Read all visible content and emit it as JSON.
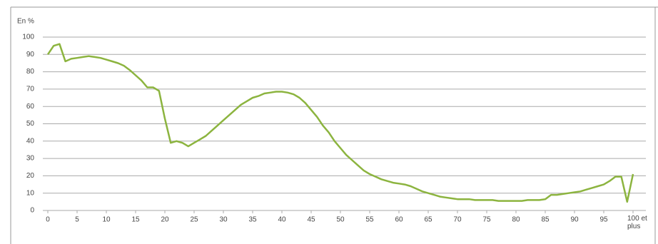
{
  "chart_data": {
    "type": "line",
    "y_label": "En %",
    "x": [
      0,
      1,
      2,
      3,
      4,
      5,
      6,
      7,
      8,
      9,
      10,
      11,
      12,
      13,
      14,
      15,
      16,
      17,
      18,
      19,
      20,
      21,
      22,
      23,
      24,
      25,
      26,
      27,
      28,
      29,
      30,
      31,
      32,
      33,
      34,
      35,
      36,
      37,
      38,
      39,
      40,
      41,
      42,
      43,
      44,
      45,
      46,
      47,
      48,
      49,
      50,
      51,
      52,
      53,
      54,
      55,
      56,
      57,
      58,
      59,
      60,
      61,
      62,
      63,
      64,
      65,
      66,
      67,
      68,
      69,
      70,
      71,
      72,
      73,
      74,
      75,
      76,
      77,
      78,
      79,
      80,
      81,
      82,
      83,
      84,
      85,
      86,
      87,
      88,
      89,
      90,
      91,
      92,
      93,
      94,
      95,
      96,
      97,
      98,
      99,
      100
    ],
    "values": [
      90,
      95,
      96,
      86,
      87.5,
      88,
      88.5,
      89,
      88.5,
      88,
      87,
      86,
      85,
      83.5,
      81,
      78,
      75,
      71,
      71,
      69,
      53,
      39,
      40,
      39,
      37,
      39,
      41,
      43,
      46,
      49,
      52,
      55,
      58,
      61,
      63,
      65,
      66,
      67.5,
      68,
      68.5,
      68.5,
      68,
      67,
      65,
      62,
      58,
      54,
      49,
      45,
      40,
      36,
      32,
      29,
      26,
      23,
      21,
      19.5,
      18,
      17,
      16,
      15.5,
      15,
      14,
      12.5,
      11,
      10,
      9,
      8,
      7.5,
      7,
      6.5,
      6.5,
      6.5,
      6,
      6,
      6,
      6,
      5.5,
      5.5,
      5.5,
      5.5,
      5.5,
      6,
      6,
      6,
      6.5,
      9,
      9,
      9.5,
      10,
      10.5,
      11,
      12,
      13,
      14,
      15,
      17,
      19.5,
      19.5,
      5,
      21
    ],
    "color": "#8cb43f",
    "xlim": [
      0,
      100
    ],
    "xticks": [
      0,
      5,
      10,
      15,
      20,
      25,
      30,
      35,
      40,
      45,
      50,
      55,
      60,
      65,
      70,
      75,
      80,
      85,
      90,
      95,
      {
        "value": 100,
        "label": "100 et plus"
      }
    ],
    "ylim": [
      0,
      100
    ],
    "yticks": [
      0,
      10,
      20,
      30,
      40,
      50,
      60,
      70,
      80,
      90,
      100
    ],
    "grid": true
  }
}
